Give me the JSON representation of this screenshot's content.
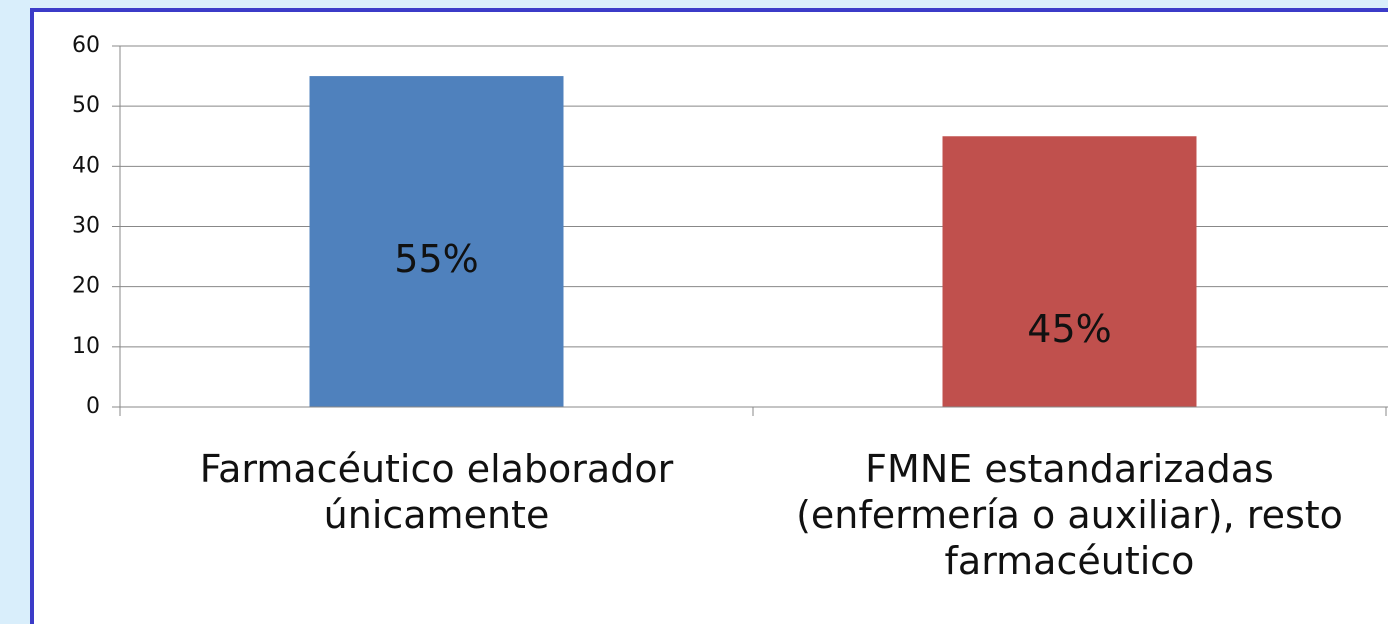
{
  "chart_data": {
    "type": "bar",
    "categories": [
      "Farmacéutico elaborador únicamente",
      "FMNE estandarizadas (enfermería o auxiliar), resto farmacéutico"
    ],
    "series": [
      {
        "name": null,
        "colors": [
          "#4f81bd",
          "#c0504d"
        ],
        "values": [
          55,
          45
        ],
        "value_labels": [
          "55%",
          "45%"
        ]
      }
    ],
    "ylim": [
      0,
      60
    ],
    "yticks": [
      0,
      10,
      20,
      30,
      40,
      50,
      60
    ],
    "grid": true
  }
}
